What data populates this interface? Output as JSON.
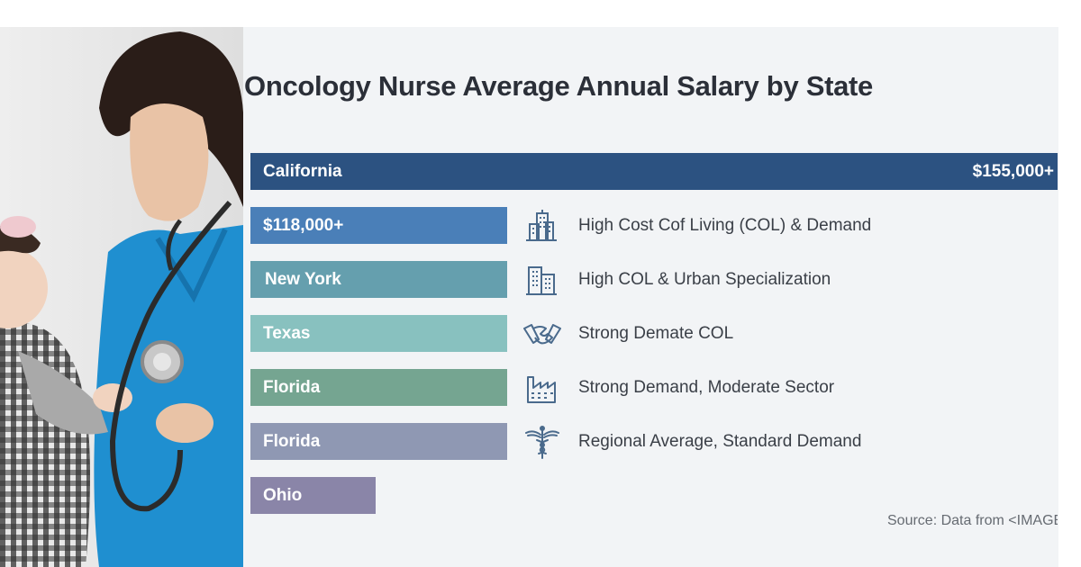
{
  "chart_data": {
    "type": "bar",
    "title": "Oncology Nurse Average Annual Salary by State",
    "categories": [
      "California",
      "$118,000+",
      "New York",
      "Texas",
      "Florida",
      "Florida",
      "Ohio"
    ],
    "value_labels": [
      "$155,000+",
      "",
      "",
      "",
      "",
      "",
      ""
    ],
    "bar_colors": [
      "#2c5281",
      "#4a7fb8",
      "#659fae",
      "#88c1bf",
      "#75a591",
      "#8f98b3",
      "#8a85a8"
    ],
    "notes": [
      {
        "icon": "city-buildings-icon",
        "text": "High Cost Cof Living (COL) & Demand"
      },
      {
        "icon": "office-building-icon",
        "text": "High COL & Urban Specialization"
      },
      {
        "icon": "handshake-icon",
        "text": "Strong Demate COL"
      },
      {
        "icon": "factory-icon",
        "text": "Strong Demand, Moderate Sector"
      },
      {
        "icon": "caduceus-icon",
        "text": "Regional Average, Standard Demand"
      }
    ],
    "source": "Source: Data from <IMAGE"
  },
  "photo": {
    "description_icon": "nurse-with-child-photo"
  },
  "colors": {
    "panel": "#f2f4f6",
    "title": "#2b2f38",
    "text": "#3a3f47",
    "icon": "#4a6a8c"
  }
}
